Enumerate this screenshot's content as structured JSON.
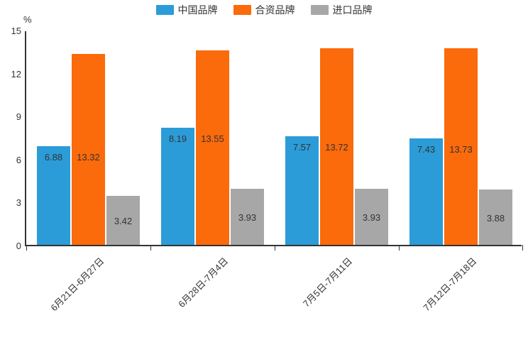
{
  "chart_data": {
    "type": "bar",
    "title": "",
    "unit_label": "%",
    "categories": [
      "6月21日-6月27日",
      "6月28日-7月4日",
      "7月5日-7月11日",
      "7月12日-7月18日"
    ],
    "series": [
      {
        "name": "中国品牌",
        "color": "#2B9CD8",
        "values": [
          6.88,
          8.19,
          7.57,
          7.43
        ]
      },
      {
        "name": "合资品牌",
        "color": "#FB6A0B",
        "values": [
          13.32,
          13.55,
          13.72,
          13.73
        ]
      },
      {
        "name": "进口品牌",
        "color": "#A7A7A7",
        "values": [
          3.42,
          3.93,
          3.93,
          3.88
        ]
      }
    ],
    "yticks": [
      0,
      3,
      6,
      9,
      12,
      15
    ],
    "ylim": [
      0,
      15
    ],
    "grid": false,
    "legend_position": "top",
    "value_label_decimals": 2
  },
  "style": {
    "axis_color": "#333333",
    "text_color": "#333333",
    "background": "#ffffff"
  }
}
